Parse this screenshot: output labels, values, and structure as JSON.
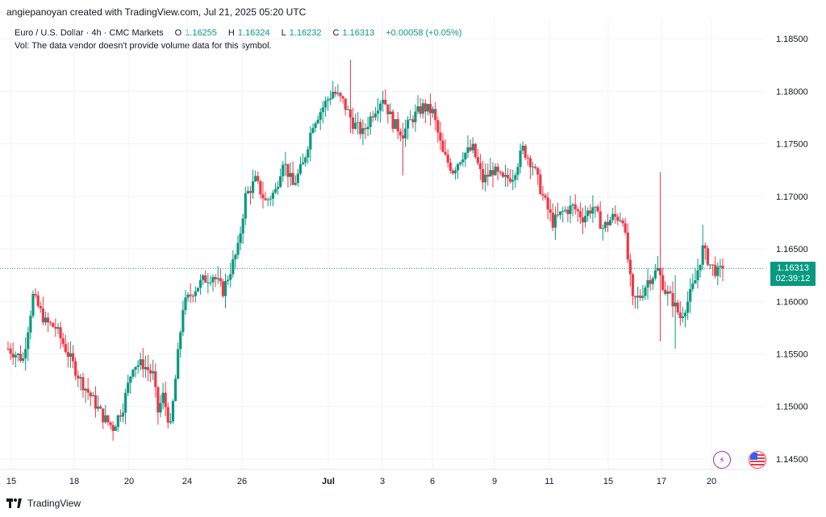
{
  "header": {
    "text": "angiepanoyan created with TradingView.com, Jul 21, 2025 05:20 UTC"
  },
  "legend": {
    "symbol": "Euro / U.S. Dollar · 4h · CMC Markets",
    "o_label": "O",
    "o_value": "1.16255",
    "h_label": "H",
    "h_value": "1.16324",
    "l_label": "L",
    "l_value": "1.16232",
    "c_label": "C",
    "c_value": "1.16313",
    "change": "+0.00058 (+0.05%)",
    "vol_note": "Vol: The data vendor doesn't provide volume data for this symbol."
  },
  "last_price": {
    "price": "1.16313",
    "countdown": "02:39:12"
  },
  "footer": {
    "brand": "TradingView"
  },
  "icons": {
    "lightning": "lightning-icon",
    "flag": "us-flag-icon"
  },
  "colors": {
    "up": "#089981",
    "down": "#f23645",
    "grid": "#f0f3fa",
    "last_line": "#089981"
  },
  "chart_data": {
    "type": "candlestick",
    "timeframe": "4h",
    "ylim": [
      1.144,
      1.187
    ],
    "y_ticks": [
      "1.14500",
      "1.15000",
      "1.15500",
      "1.16000",
      "1.16500",
      "1.17000",
      "1.17500",
      "1.18000",
      "1.18500"
    ],
    "x_ticks": [
      "15",
      "18",
      "20",
      "24",
      "26",
      "Jul",
      "3",
      "6",
      "9",
      "11",
      "15",
      "17",
      "20"
    ],
    "last_price": 1.16313,
    "waypoints": [
      [
        0,
        1.1555
      ],
      [
        6,
        1.1545
      ],
      [
        10,
        1.1605
      ],
      [
        15,
        1.158
      ],
      [
        19,
        1.1575
      ],
      [
        24,
        1.155
      ],
      [
        29,
        1.1525
      ],
      [
        33,
        1.151
      ],
      [
        38,
        1.149
      ],
      [
        42,
        1.148
      ],
      [
        46,
        1.15
      ],
      [
        50,
        1.154
      ],
      [
        54,
        1.154
      ],
      [
        58,
        1.153
      ],
      [
        60,
        1.1495
      ],
      [
        62,
        1.151
      ],
      [
        65,
        1.148
      ],
      [
        70,
        1.1595
      ],
      [
        74,
        1.161
      ],
      [
        78,
        1.162
      ],
      [
        82,
        1.1625
      ],
      [
        86,
        1.161
      ],
      [
        89,
        1.163
      ],
      [
        92,
        1.165
      ],
      [
        95,
        1.17
      ],
      [
        99,
        1.1715
      ],
      [
        103,
        1.1695
      ],
      [
        107,
        1.1705
      ],
      [
        110,
        1.1735
      ],
      [
        114,
        1.171
      ],
      [
        118,
        1.173
      ],
      [
        122,
        1.177
      ],
      [
        126,
        1.1785
      ],
      [
        130,
        1.18
      ],
      [
        134,
        1.179
      ],
      [
        138,
        1.177
      ],
      [
        142,
        1.176
      ],
      [
        146,
        1.178
      ],
      [
        150,
        1.1795
      ],
      [
        154,
        1.177
      ],
      [
        158,
        1.176
      ],
      [
        162,
        1.1775
      ],
      [
        166,
        1.1785
      ],
      [
        170,
        1.178
      ],
      [
        174,
        1.174
      ],
      [
        178,
        1.1725
      ],
      [
        182,
        1.174
      ],
      [
        186,
        1.1745
      ],
      [
        190,
        1.1715
      ],
      [
        194,
        1.1725
      ],
      [
        198,
        1.1715
      ],
      [
        202,
        1.172
      ],
      [
        206,
        1.1745
      ],
      [
        210,
        1.173
      ],
      [
        214,
        1.17
      ],
      [
        218,
        1.1675
      ],
      [
        222,
        1.1685
      ],
      [
        226,
        1.169
      ],
      [
        230,
        1.168
      ],
      [
        234,
        1.169
      ],
      [
        238,
        1.167
      ],
      [
        242,
        1.168
      ],
      [
        246,
        1.168
      ],
      [
        250,
        1.16
      ],
      [
        253,
        1.1605
      ],
      [
        256,
        1.162
      ],
      [
        260,
        1.163
      ],
      [
        263,
        1.161
      ],
      [
        266,
        1.16
      ],
      [
        269,
        1.1585
      ],
      [
        272,
        1.16
      ],
      [
        275,
        1.162
      ],
      [
        278,
        1.165
      ],
      [
        281,
        1.1635
      ],
      [
        284,
        1.1627
      ],
      [
        286,
        1.1631
      ]
    ],
    "spikes": [
      {
        "t": 261,
        "high": 1.1723,
        "low": 1.1562
      },
      {
        "t": 267,
        "high": 1.1625,
        "low": 1.1555
      },
      {
        "t": 278,
        "high": 1.1673,
        "low": 1.163
      },
      {
        "t": 137,
        "high": 1.183,
        "low": 1.176
      },
      {
        "t": 158,
        "high": 1.177,
        "low": 1.172
      }
    ]
  }
}
